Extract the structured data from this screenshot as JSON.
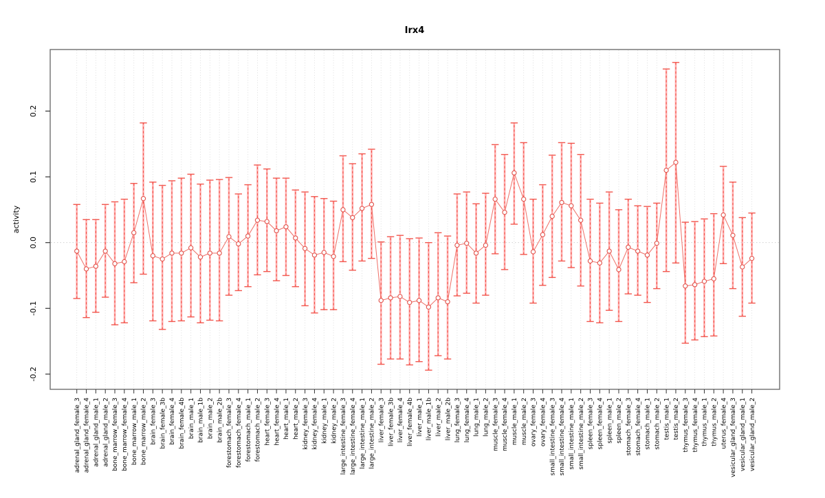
{
  "chart_data": {
    "type": "errorbar-line",
    "title": "Irx4",
    "ylabel": "activity",
    "xlabel": "",
    "ylim": [
      -0.223,
      0.294
    ],
    "yticks": [
      -0.2,
      -0.1,
      0.0,
      0.1,
      0.2
    ],
    "ytick_labels": [
      "-0.2",
      "-0.1",
      "0.0",
      "0.1",
      "0.2"
    ],
    "grid": "vertical-dotted-per-category",
    "zero_line": true,
    "legend_position": "none",
    "colors": {
      "errorbar_fill": "#ffadad",
      "errorbar_dash": "#f2564d",
      "point_stroke": "#e2524b",
      "connect_line": "#ef6e66",
      "gridline": "#d9d9d9",
      "zero_line": "#c8c8c8",
      "box": "#6e6e6e"
    },
    "categories": [
      "adrenal_gland_female_3",
      "adrenal_gland_female_4",
      "adrenal_gland_male_1",
      "adrenal_gland_male_2",
      "bone_marrow_female_3",
      "bone_marrow_female_4",
      "bone_marrow_male_1",
      "bone_marrow_male_2",
      "brain_female_3",
      "brain_female_3b",
      "brain_female_4",
      "brain_female_4b",
      "brain_male_1",
      "brain_male_1b",
      "brain_male_2",
      "brain_male_2b",
      "forestomach_female_3",
      "forestomach_female_4",
      "forestomach_male_1",
      "forestomach_male_2",
      "heart_female_3",
      "heart_female_4",
      "heart_male_1",
      "heart_male_2",
      "kidney_female_3",
      "kidney_female_4",
      "kidney_male_1",
      "kidney_male_2",
      "large_intestine_female_3",
      "large_intestine_female_4",
      "large_intestine_male_1",
      "large_intestine_male_2",
      "liver_female_3",
      "liver_female_3b",
      "liver_female_4",
      "liver_female_4b",
      "liver_male_1",
      "liver_male_1b",
      "liver_male_2",
      "liver_male_2b",
      "lung_female_3",
      "lung_female_4",
      "lung_male_1",
      "lung_male_2",
      "muscle_female_3",
      "muscle_female_4",
      "muscle_male_1",
      "muscle_male_2",
      "ovary_female_3",
      "ovary_female_4",
      "small_intestine_female_3",
      "small_intestine_female_4",
      "small_intestine_male_1",
      "small_intestine_male_2",
      "spleen_female_3",
      "spleen_female_4",
      "spleen_male_1",
      "spleen_male_2",
      "stomach_female_3",
      "stomach_female_4",
      "stomach_male_1",
      "stomach_male_2",
      "testis_male_1",
      "testis_male_2",
      "thymus_female_3",
      "thymus_female_4",
      "thymus_male_1",
      "thymus_male_2",
      "uterus_female_4",
      "vesicular_gland_female_3",
      "vesicular_gland_male_1",
      "vesicular_gland_male_2"
    ],
    "series": [
      {
        "name": "activity",
        "values": [
          -0.013,
          -0.04,
          -0.036,
          -0.013,
          -0.032,
          -0.029,
          0.015,
          0.067,
          -0.02,
          -0.025,
          -0.016,
          -0.016,
          -0.008,
          -0.022,
          -0.016,
          -0.016,
          0.009,
          -0.002,
          0.01,
          0.034,
          0.032,
          0.018,
          0.024,
          0.007,
          -0.009,
          -0.019,
          -0.015,
          -0.021,
          0.05,
          0.038,
          0.052,
          0.058,
          -0.088,
          -0.084,
          -0.082,
          -0.091,
          -0.088,
          -0.098,
          -0.084,
          -0.09,
          -0.004,
          -0.001,
          -0.016,
          -0.004,
          0.066,
          0.046,
          0.106,
          0.066,
          -0.014,
          0.012,
          0.04,
          0.061,
          0.056,
          0.034,
          -0.028,
          -0.031,
          -0.013,
          -0.041,
          -0.007,
          -0.013,
          -0.019,
          -0.001,
          0.11,
          0.122,
          -0.066,
          -0.064,
          -0.059,
          -0.055,
          0.042,
          0.011,
          -0.037,
          -0.024
        ],
        "lower": [
          -0.085,
          -0.114,
          -0.106,
          -0.083,
          -0.125,
          -0.122,
          -0.061,
          -0.048,
          -0.119,
          -0.132,
          -0.12,
          -0.119,
          -0.113,
          -0.122,
          -0.118,
          -0.119,
          -0.08,
          -0.073,
          -0.067,
          -0.049,
          -0.044,
          -0.058,
          -0.05,
          -0.067,
          -0.096,
          -0.107,
          -0.102,
          -0.102,
          -0.029,
          -0.042,
          -0.028,
          -0.024,
          -0.185,
          -0.177,
          -0.177,
          -0.186,
          -0.181,
          -0.194,
          -0.172,
          -0.177,
          -0.081,
          -0.077,
          -0.092,
          -0.08,
          -0.017,
          -0.041,
          0.028,
          -0.018,
          -0.092,
          -0.065,
          -0.053,
          -0.028,
          -0.038,
          -0.066,
          -0.12,
          -0.122,
          -0.103,
          -0.12,
          -0.078,
          -0.08,
          -0.091,
          -0.07,
          -0.044,
          -0.031,
          -0.153,
          -0.148,
          -0.143,
          -0.142,
          -0.032,
          -0.07,
          -0.112,
          -0.092
        ],
        "upper": [
          0.058,
          0.035,
          0.035,
          0.058,
          0.062,
          0.066,
          0.09,
          0.182,
          0.092,
          0.087,
          0.094,
          0.098,
          0.104,
          0.089,
          0.095,
          0.096,
          0.099,
          0.074,
          0.088,
          0.118,
          0.112,
          0.098,
          0.098,
          0.08,
          0.077,
          0.07,
          0.067,
          0.063,
          0.132,
          0.12,
          0.135,
          0.142,
          0.001,
          0.009,
          0.011,
          0.006,
          0.007,
          0.0,
          0.015,
          0.01,
          0.074,
          0.077,
          0.059,
          0.075,
          0.149,
          0.134,
          0.182,
          0.152,
          0.066,
          0.088,
          0.133,
          0.152,
          0.151,
          0.134,
          0.066,
          0.06,
          0.077,
          0.05,
          0.066,
          0.056,
          0.055,
          0.06,
          0.264,
          0.274,
          0.031,
          0.032,
          0.036,
          0.044,
          0.116,
          0.092,
          0.038,
          0.045
        ]
      }
    ]
  }
}
